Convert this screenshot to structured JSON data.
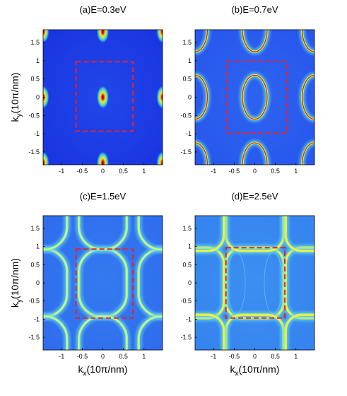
{
  "chart_data": [
    {
      "type": "heatmap",
      "title": "(a)E=0.3eV",
      "ylabel_main": "k",
      "ylabel_sub": "y",
      "ylabel_unit": "(10π/nm)",
      "xticks": [
        "-1",
        "-0.5",
        "0",
        "0.5",
        "1"
      ],
      "yticks": [
        "1.5",
        "1",
        "0.5",
        "0",
        "-0.5",
        "-1",
        "-1.5"
      ],
      "xlim": [
        -1.45,
        1.45
      ],
      "ylim": [
        -1.85,
        1.85
      ],
      "features": "bright spots",
      "spots": [
        [
          0,
          0
        ],
        [
          0,
          1.8
        ],
        [
          0,
          -1.8
        ],
        [
          -1.45,
          0
        ],
        [
          1.45,
          0
        ],
        [
          -1.45,
          1.8
        ],
        [
          1.45,
          1.8
        ],
        [
          -1.45,
          -1.8
        ],
        [
          1.45,
          -1.8
        ]
      ],
      "dashed_box": {
        "x": [
          -0.65,
          0.73
        ],
        "y": [
          -0.93,
          0.97
        ]
      }
    },
    {
      "type": "heatmap",
      "title": "(b)E=0.7eV",
      "xticks": [
        "-1",
        "-0.5",
        "0",
        "0.5",
        "1"
      ],
      "yticks": [
        "1.5",
        "1",
        "0.5",
        "0",
        "-0.5",
        "-1",
        "-1.5"
      ],
      "xlim": [
        -1.45,
        1.45
      ],
      "ylim": [
        -1.85,
        1.85
      ],
      "features": "elliptical rings",
      "rings": [
        {
          "center": [
            0,
            0
          ],
          "rx": 0.3,
          "ry": 0.6
        },
        {
          "center": [
            -1.45,
            0
          ],
          "rx": 0.3,
          "ry": 0.6
        },
        {
          "center": [
            1.45,
            0
          ],
          "rx": 0.3,
          "ry": 0.6
        },
        {
          "center": [
            0,
            1.85
          ],
          "rx": 0.3,
          "ry": 0.6
        },
        {
          "center": [
            0,
            -1.85
          ],
          "rx": 0.3,
          "ry": 0.6
        },
        {
          "center": [
            -1.45,
            1.85
          ],
          "rx": 0.3,
          "ry": 0.6
        },
        {
          "center": [
            1.45,
            1.85
          ],
          "rx": 0.3,
          "ry": 0.6
        },
        {
          "center": [
            -1.45,
            -1.85
          ],
          "rx": 0.3,
          "ry": 0.6
        },
        {
          "center": [
            1.45,
            -1.85
          ],
          "rx": 0.3,
          "ry": 0.6
        }
      ],
      "dashed_box": {
        "x": [
          -0.68,
          0.78
        ],
        "y": [
          -0.98,
          0.98
        ]
      }
    },
    {
      "type": "heatmap",
      "title": "(c)E=1.5eV",
      "xlabel_main": "k",
      "xlabel_sub": "x",
      "xlabel_unit": "(10π/nm)",
      "ylabel_main": "k",
      "ylabel_sub": "y",
      "ylabel_unit": "(10π/nm)",
      "xticks": [
        "-1",
        "-0.5",
        "0",
        "0.5",
        "1"
      ],
      "yticks": [
        "1.5",
        "1",
        "0.5",
        "0",
        "-0.5",
        "-1",
        "-1.5"
      ],
      "xlim": [
        -1.45,
        1.45
      ],
      "ylim": [
        -1.85,
        1.85
      ],
      "features": "rounded rectangular loops",
      "rings": [
        {
          "center": [
            0,
            0
          ],
          "rx": 0.58,
          "ry": 0.93
        },
        {
          "center": [
            -1.45,
            0
          ],
          "rx": 0.58,
          "ry": 0.93
        },
        {
          "center": [
            1.45,
            0
          ],
          "rx": 0.58,
          "ry": 0.93
        },
        {
          "center": [
            0,
            1.85
          ],
          "rx": 0.58,
          "ry": 0.93
        },
        {
          "center": [
            0,
            -1.85
          ],
          "rx": 0.58,
          "ry": 0.93
        },
        {
          "center": [
            -1.45,
            1.85
          ],
          "rx": 0.58,
          "ry": 0.93
        },
        {
          "center": [
            1.45,
            1.85
          ],
          "rx": 0.58,
          "ry": 0.93
        },
        {
          "center": [
            -1.45,
            -1.85
          ],
          "rx": 0.58,
          "ry": 0.93
        },
        {
          "center": [
            1.45,
            -1.85
          ],
          "rx": 0.58,
          "ry": 0.93
        }
      ],
      "dashed_box": {
        "x": [
          -0.65,
          0.73
        ],
        "y": [
          -0.97,
          0.93
        ]
      }
    },
    {
      "type": "heatmap",
      "title": "(d)E=2.5eV",
      "xlabel_main": "k",
      "xlabel_sub": "x",
      "xlabel_unit": "(10π/nm)",
      "xticks": [
        "-1",
        "-0.5",
        "0",
        "0.5",
        "1"
      ],
      "yticks": [
        "1.5",
        "1",
        "0.5",
        "0",
        "-0.5",
        "-1",
        "-1.5"
      ],
      "xlim": [
        -1.45,
        1.45
      ],
      "ylim": [
        -1.85,
        1.85
      ],
      "features": "square grid network",
      "rings": [
        {
          "center": [
            0,
            0
          ],
          "rx": 0.7,
          "ry": 0.97
        },
        {
          "center": [
            -1.45,
            0
          ],
          "rx": 0.7,
          "ry": 0.97
        },
        {
          "center": [
            1.45,
            0
          ],
          "rx": 0.7,
          "ry": 0.97
        },
        {
          "center": [
            0,
            1.85
          ],
          "rx": 0.7,
          "ry": 0.97
        },
        {
          "center": [
            0,
            -1.85
          ],
          "rx": 0.7,
          "ry": 0.97
        },
        {
          "center": [
            -1.45,
            1.85
          ],
          "rx": 0.7,
          "ry": 0.97
        },
        {
          "center": [
            1.45,
            1.85
          ],
          "rx": 0.7,
          "ry": 0.97
        },
        {
          "center": [
            -1.45,
            -1.85
          ],
          "rx": 0.7,
          "ry": 0.97
        },
        {
          "center": [
            1.45,
            -1.85
          ],
          "rx": 0.7,
          "ry": 0.97
        }
      ],
      "dashed_box": {
        "x": [
          -0.7,
          0.73
        ],
        "y": [
          -0.97,
          0.97
        ]
      }
    }
  ],
  "colors": {
    "background": "#1c37e4",
    "background_light": "#2f6cf2",
    "feature_outer": "#5fd3f2",
    "feature_mid": "#b8f55a",
    "feature_core": "#e0201a",
    "feature_dark": "#8a0000",
    "dashed_box": "#e3242b"
  }
}
